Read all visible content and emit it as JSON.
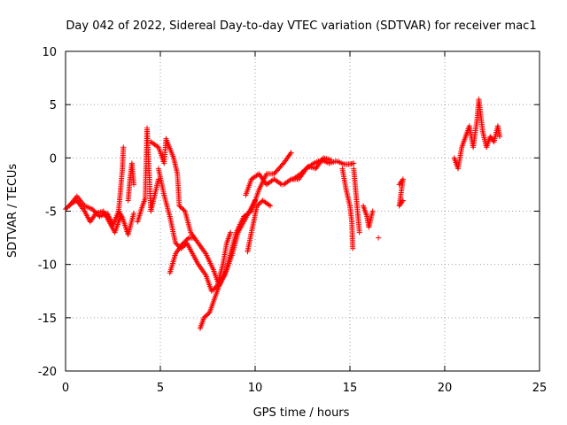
{
  "chart_data": {
    "type": "scatter",
    "title": "Day 042 of 2022, Sidereal Day-to-day VTEC variation (SDTVAR) for receiver mac1",
    "xlabel": "GPS time / hours",
    "ylabel": "SDTVAR / TECUs",
    "xlim": [
      0,
      25
    ],
    "ylim": [
      -20,
      10
    ],
    "xticks": [
      0,
      5,
      10,
      15,
      20,
      25
    ],
    "yticks": [
      -20,
      -15,
      -10,
      -5,
      0,
      5,
      10
    ],
    "grid": true,
    "marker": "+",
    "marker_color": "#ff0000",
    "segments": [
      [
        [
          0.0,
          -4.8
        ],
        [
          0.3,
          -4.3
        ],
        [
          0.6,
          -4.0
        ],
        [
          1.0,
          -5.0
        ],
        [
          1.3,
          -6.0
        ],
        [
          1.6,
          -5.2
        ],
        [
          2.0,
          -5.0
        ],
        [
          2.3,
          -6.0
        ],
        [
          2.6,
          -7.0
        ],
        [
          2.9,
          -5.5
        ]
      ],
      [
        [
          0.2,
          -4.5
        ],
        [
          0.6,
          -3.6
        ],
        [
          1.0,
          -4.5
        ],
        [
          1.4,
          -4.8
        ],
        [
          1.8,
          -5.5
        ],
        [
          2.2,
          -5.2
        ],
        [
          2.5,
          -6.3
        ],
        [
          2.8,
          -5.0
        ],
        [
          3.0,
          -5.6
        ],
        [
          3.3,
          -7.2
        ],
        [
          3.6,
          -5.2
        ]
      ],
      [
        [
          2.8,
          -5.0
        ],
        [
          2.9,
          -3.0
        ],
        [
          3.0,
          -1.0
        ],
        [
          3.05,
          1.0
        ]
      ],
      [
        [
          3.3,
          -4.0
        ],
        [
          3.4,
          -2.0
        ],
        [
          3.5,
          -0.5
        ],
        [
          3.6,
          -2.5
        ]
      ],
      [
        [
          3.8,
          -6.0
        ],
        [
          4.0,
          -4.8
        ],
        [
          4.2,
          -3.8
        ],
        [
          4.3,
          2.8
        ],
        [
          4.5,
          -5.0
        ],
        [
          4.7,
          -3.5
        ],
        [
          4.9,
          -2.0
        ]
      ],
      [
        [
          4.5,
          1.5
        ],
        [
          4.9,
          1.0
        ],
        [
          5.2,
          -0.5
        ],
        [
          5.3,
          1.8
        ],
        [
          5.7,
          0.0
        ],
        [
          5.9,
          -1.5
        ],
        [
          6.0,
          -4.5
        ],
        [
          6.3,
          -5.0
        ],
        [
          6.6,
          -7.0
        ],
        [
          7.0,
          -8.0
        ],
        [
          7.4,
          -9.0
        ],
        [
          7.8,
          -10.5
        ],
        [
          8.1,
          -12.0
        ],
        [
          8.4,
          -11.0
        ],
        [
          8.7,
          -9.0
        ],
        [
          9.0,
          -7.0
        ],
        [
          9.4,
          -5.5
        ],
        [
          9.8,
          -5.0
        ],
        [
          10.2,
          -3.0
        ],
        [
          10.6,
          -1.5
        ],
        [
          11.0,
          -1.5
        ],
        [
          11.5,
          -0.5
        ],
        [
          11.9,
          0.5
        ]
      ],
      [
        [
          4.9,
          -1.0
        ],
        [
          5.2,
          -3.5
        ],
        [
          5.5,
          -5.5
        ],
        [
          5.8,
          -8.0
        ],
        [
          6.1,
          -8.5
        ],
        [
          6.4,
          -8.0
        ],
        [
          6.7,
          -9.0
        ],
        [
          7.0,
          -10.0
        ],
        [
          7.4,
          -11.0
        ],
        [
          7.7,
          -12.5
        ],
        [
          8.0,
          -12.0
        ],
        [
          8.3,
          -10.0
        ],
        [
          8.5,
          -8.0
        ],
        [
          8.7,
          -7.0
        ]
      ],
      [
        [
          5.5,
          -10.8
        ],
        [
          5.8,
          -9.0
        ],
        [
          6.1,
          -8.2
        ],
        [
          6.5,
          -7.5
        ],
        [
          6.8,
          -7.5
        ]
      ],
      [
        [
          7.1,
          -16.0
        ],
        [
          7.3,
          -15.0
        ],
        [
          7.6,
          -14.5
        ],
        [
          7.9,
          -13.0
        ],
        [
          8.2,
          -11.5
        ],
        [
          8.5,
          -10.5
        ],
        [
          8.8,
          -9.0
        ],
        [
          9.1,
          -7.0
        ],
        [
          9.4,
          -6.0
        ],
        [
          9.7,
          -5.0
        ],
        [
          10.0,
          -4.0
        ]
      ],
      [
        [
          9.6,
          -8.8
        ],
        [
          9.8,
          -7.0
        ],
        [
          10.1,
          -4.5
        ],
        [
          10.4,
          -4.0
        ],
        [
          10.8,
          -4.5
        ]
      ],
      [
        [
          9.5,
          -3.5
        ],
        [
          9.8,
          -2.0
        ],
        [
          10.2,
          -1.5
        ],
        [
          10.6,
          -2.5
        ],
        [
          11.0,
          -2.0
        ],
        [
          11.4,
          -2.5
        ]
      ],
      [
        [
          11.5,
          -2.5
        ],
        [
          11.9,
          -2.0
        ],
        [
          12.3,
          -2.0
        ],
        [
          12.7,
          -1.0
        ],
        [
          13.1,
          -0.5
        ],
        [
          13.5,
          -0.2
        ],
        [
          13.9,
          -0.5
        ],
        [
          14.3,
          -0.3
        ],
        [
          14.7,
          -0.6
        ],
        [
          15.0,
          -0.6
        ],
        [
          15.2,
          -0.5
        ]
      ],
      [
        [
          12.0,
          -2.0
        ],
        [
          12.4,
          -1.5
        ],
        [
          12.8,
          -0.8
        ],
        [
          13.2,
          -1.0
        ],
        [
          13.6,
          0.0
        ],
        [
          14.0,
          -0.2
        ]
      ],
      [
        [
          14.6,
          -1.0
        ],
        [
          14.8,
          -3.0
        ],
        [
          15.0,
          -4.5
        ],
        [
          15.1,
          -6.0
        ],
        [
          15.15,
          -8.5
        ]
      ],
      [
        [
          15.2,
          -1.0
        ],
        [
          15.3,
          -3.0
        ],
        [
          15.4,
          -5.0
        ],
        [
          15.5,
          -7.0
        ]
      ],
      [
        [
          15.7,
          -4.5
        ],
        [
          15.9,
          -5.5
        ],
        [
          16.0,
          -6.5
        ],
        [
          16.2,
          -5.0
        ]
      ],
      [
        [
          16.5,
          -7.5
        ]
      ],
      [
        [
          17.6,
          -2.5
        ],
        [
          17.8,
          -2.0
        ],
        [
          17.6,
          -4.5
        ],
        [
          17.8,
          -4.0
        ]
      ],
      [
        [
          20.5,
          0.0
        ],
        [
          20.7,
          -1.0
        ],
        [
          20.9,
          1.0
        ],
        [
          21.1,
          2.0
        ],
        [
          21.3,
          3.0
        ],
        [
          21.5,
          1.0
        ],
        [
          21.7,
          3.5
        ],
        [
          21.8,
          5.5
        ],
        [
          22.0,
          2.5
        ],
        [
          22.2,
          1.0
        ],
        [
          22.4,
          2.0
        ],
        [
          22.6,
          1.5
        ],
        [
          22.8,
          3.0
        ],
        [
          22.9,
          2.0
        ]
      ]
    ]
  }
}
